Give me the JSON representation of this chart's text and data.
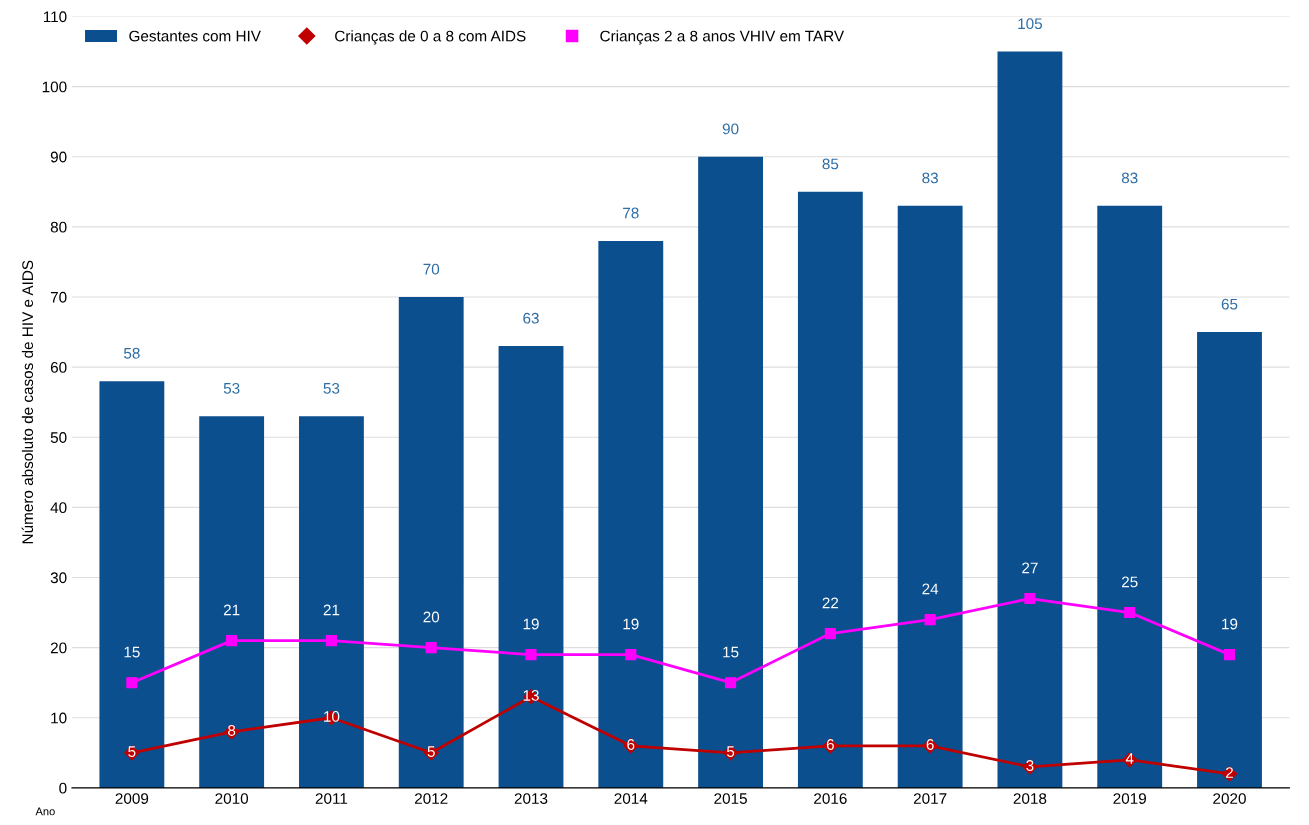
{
  "chart_data": {
    "type": "bar",
    "xlabel": "Ano",
    "ylabel": "Número absoluto de casos de HIV e AIDS",
    "categories": [
      "2009",
      "2010",
      "2011",
      "2012",
      "2013",
      "2014",
      "2015",
      "2016",
      "2017",
      "2018",
      "2019",
      "2020"
    ],
    "series": [
      {
        "name": "Gestantes com HIV",
        "color": "#0b4f8f",
        "values": [
          58,
          53,
          53,
          70,
          63,
          78,
          90,
          85,
          83,
          105,
          83,
          65
        ]
      },
      {
        "name": "Crianças de 0 a 8 com AIDS",
        "type": "line",
        "marker": "diamond",
        "color": "#c00000",
        "values": [
          5,
          8,
          10,
          5,
          13,
          6,
          5,
          6,
          6,
          3,
          4,
          2
        ]
      },
      {
        "name": "Crianças 2 a 8 anos VHIV em TARV",
        "type": "line",
        "marker": "square",
        "color": "#ff00ff",
        "values": [
          15,
          21,
          21,
          20,
          19,
          19,
          15,
          22,
          24,
          27,
          25,
          19
        ]
      }
    ],
    "ylim": [
      0,
      110
    ],
    "yticks": [
      0,
      10,
      20,
      30,
      40,
      50,
      60,
      70,
      80,
      90,
      100,
      110
    ],
    "grid": "y",
    "legend": "top left",
    "data_labels": true
  }
}
